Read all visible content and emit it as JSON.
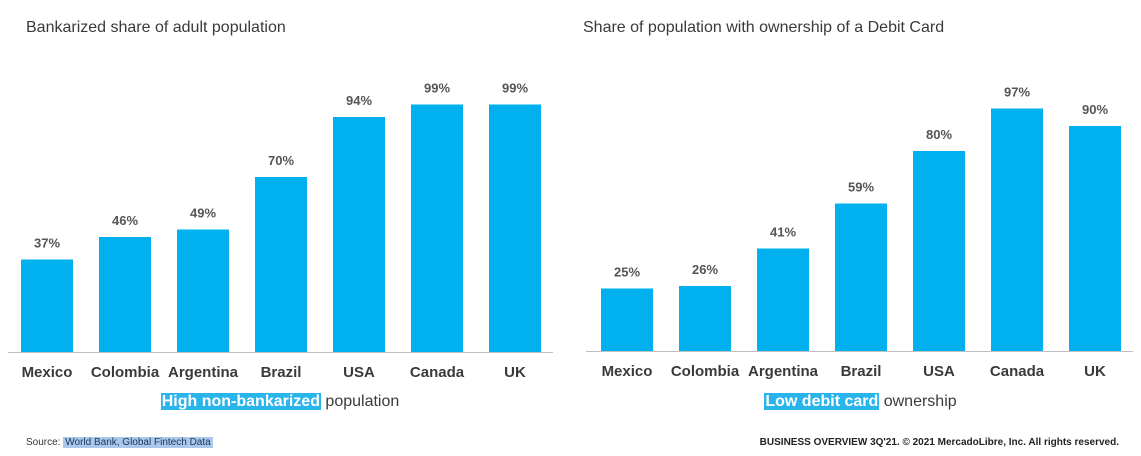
{
  "colors": {
    "bar": "#00b0ef",
    "highlight": "#29b4ec",
    "text": "#3a3a3a",
    "value_label": "#555555"
  },
  "chart_data": [
    {
      "type": "bar",
      "title": "Bankarized share of adult population",
      "categories": [
        "Mexico",
        "Colombia",
        "Argentina",
        "Brazil",
        "USA",
        "Canada",
        "UK"
      ],
      "values": [
        37,
        46,
        49,
        70,
        94,
        99,
        99
      ],
      "value_labels": [
        "37%",
        "46%",
        "49%",
        "70%",
        "94%",
        "99%",
        "99%"
      ],
      "ylim": [
        0,
        100
      ],
      "grid": false,
      "caption_highlight": "High non-bankarized",
      "caption_rest": " population"
    },
    {
      "type": "bar",
      "title": "Share of population with ownership of a Debit Card",
      "categories": [
        "Mexico",
        "Colombia",
        "Argentina",
        "Brazil",
        "USA",
        "Canada",
        "UK"
      ],
      "values": [
        25,
        26,
        41,
        59,
        80,
        97,
        90
      ],
      "value_labels": [
        "25%",
        "26%",
        "41%",
        "59%",
        "80%",
        "97%",
        "90%"
      ],
      "ylim": [
        0,
        100
      ],
      "grid": false,
      "caption_highlight": "Low debit card",
      "caption_rest": " ownership"
    }
  ],
  "footer": {
    "source_prefix": "Source: ",
    "source_text": "World Bank, Global Fintech Data",
    "copyright": "BUSINESS OVERVIEW 3Q'21. © 2021 MercadoLibre, Inc. All rights reserved."
  }
}
